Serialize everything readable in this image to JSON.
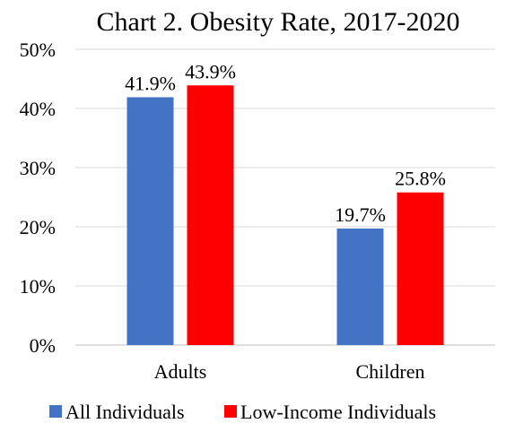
{
  "chart_data": {
    "type": "bar",
    "title": "Chart 2. Obesity Rate, 2017-2020",
    "categories": [
      "Adults",
      "Children"
    ],
    "series": [
      {
        "name": "All Individuals",
        "values": [
          41.9,
          19.7
        ],
        "labels": [
          "41.9%",
          "19.7%"
        ],
        "color": "#4472C4"
      },
      {
        "name": "Low-Income Individuals",
        "values": [
          43.9,
          25.8
        ],
        "labels": [
          "43.9%",
          "25.8%"
        ],
        "color": "#FF0000"
      }
    ],
    "ylim": [
      0,
      50
    ],
    "yticks": [
      0,
      10,
      20,
      30,
      40,
      50
    ],
    "ytick_labels": [
      "0%",
      "10%",
      "20%",
      "30%",
      "40%",
      "50%"
    ],
    "grid": true,
    "legend_position": "bottom",
    "xlabel": "",
    "ylabel": ""
  }
}
